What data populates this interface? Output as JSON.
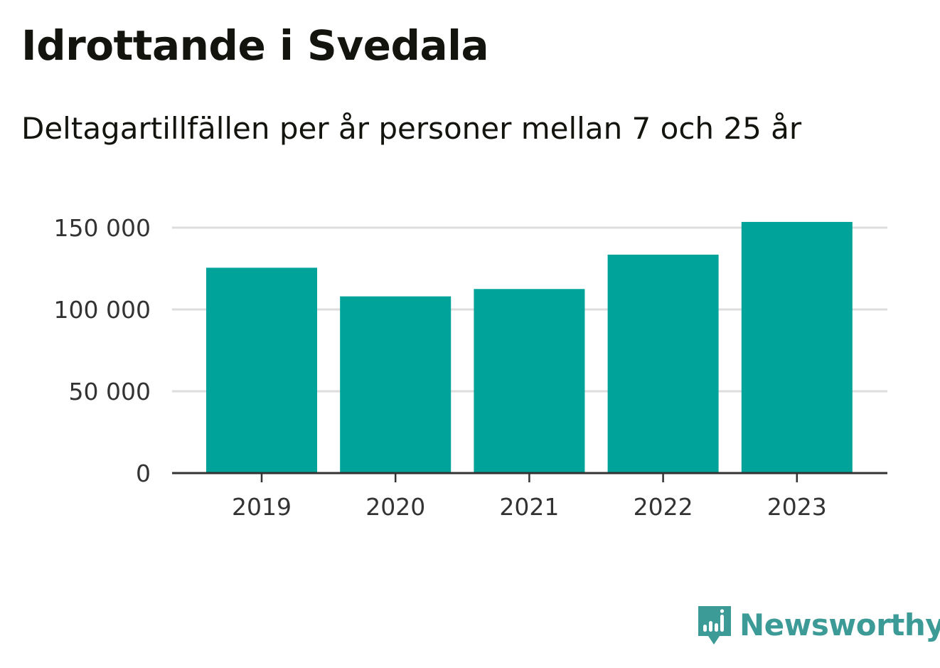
{
  "chart_data": {
    "type": "bar",
    "title": "Idrottande i Svedala",
    "subtitle": "Deltagartillfällen per år personer mellan 7 och 25 år",
    "categories": [
      "2019",
      "2020",
      "2021",
      "2022",
      "2023"
    ],
    "values": [
      125500,
      108000,
      112500,
      133500,
      153500
    ],
    "ylim": [
      0,
      150000
    ],
    "yticks": [
      0,
      50000,
      100000,
      150000
    ],
    "ytick_labels": [
      "0",
      "50 000",
      "100 000",
      "150 000"
    ],
    "xlabel": "",
    "ylabel": "",
    "grid": true,
    "bar_color": "#00a39a",
    "grid_color": "#dddddd",
    "axis_color": "#333333"
  },
  "brand": {
    "name": "Newsworthy",
    "icon": "newsworthy-logo-icon",
    "color": "#3c9b96"
  }
}
